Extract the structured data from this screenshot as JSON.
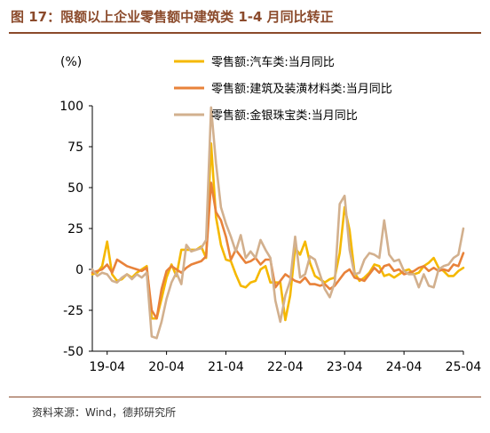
{
  "figure": {
    "title": "图 17：限额以上企业零售额中建筑类 1-4 月同比转正",
    "source": "资料来源：Wind，德邦研究所"
  },
  "chart_data": {
    "type": "line",
    "ylabel": "(%)",
    "xlabel": "",
    "ylim": [
      -50,
      100
    ],
    "yticks": [
      -50,
      -25,
      0,
      25,
      50,
      75,
      100
    ],
    "xticks": [
      "19-04",
      "20-04",
      "21-04",
      "22-04",
      "23-04",
      "24-04",
      "25-04"
    ],
    "grid": false,
    "legend_position": "top-right",
    "x": [
      "19-01",
      "19-02",
      "19-03",
      "19-04",
      "19-05",
      "19-06",
      "19-07",
      "19-08",
      "19-09",
      "19-10",
      "19-11",
      "19-12",
      "20-01",
      "20-02",
      "20-03",
      "20-04",
      "20-05",
      "20-06",
      "20-07",
      "20-08",
      "20-09",
      "20-10",
      "20-11",
      "20-12",
      "21-01",
      "21-02",
      "21-03",
      "21-04",
      "21-05",
      "21-06",
      "21-07",
      "21-08",
      "21-09",
      "21-10",
      "21-11",
      "21-12",
      "22-01",
      "22-02",
      "22-03",
      "22-04",
      "22-05",
      "22-06",
      "22-07",
      "22-08",
      "22-09",
      "22-10",
      "22-11",
      "22-12",
      "23-01",
      "23-02",
      "23-03",
      "23-04",
      "23-05",
      "23-06",
      "23-07",
      "23-08",
      "23-09",
      "23-10",
      "23-11",
      "23-12",
      "24-01",
      "24-02",
      "24-03",
      "24-04",
      "24-05",
      "24-06",
      "24-07",
      "24-08",
      "24-09",
      "24-10",
      "24-11",
      "24-12",
      "25-01",
      "25-02",
      "25-03",
      "25-04"
    ],
    "series": [
      {
        "name": "零售额:汽车类:当月同比",
        "color": "#F5B800",
        "values": [
          -3,
          -2,
          2,
          17,
          -3,
          -7,
          -6,
          -3,
          -5,
          -2,
          0,
          2,
          -30,
          -30,
          -18,
          -5,
          3,
          -4,
          12,
          12,
          12,
          12,
          14,
          7,
          77,
          32,
          15,
          6,
          5,
          -3,
          -10,
          -11,
          -8,
          -7,
          0,
          2,
          -8,
          -8,
          -8,
          -31,
          -16,
          13,
          9,
          17,
          4,
          -4,
          -6,
          -8,
          -6,
          -5,
          10,
          38,
          24,
          -2,
          -7,
          -5,
          -2,
          3,
          2,
          -4,
          -3,
          -5,
          -3,
          -1,
          0,
          -3,
          -2,
          2,
          4,
          7,
          1,
          -1,
          -4,
          -4,
          -1,
          1
        ]
      },
      {
        "name": "零售额:建筑及装潢材料类:当月同比",
        "color": "#E8823A",
        "values": [
          -2,
          -1,
          0,
          3,
          -2,
          6,
          4,
          2,
          1,
          0,
          -1,
          1,
          -25,
          -30,
          -12,
          -1,
          2,
          0,
          -2,
          1,
          3,
          4,
          5,
          8,
          53,
          35,
          30,
          20,
          6,
          12,
          8,
          4,
          5,
          7,
          3,
          6,
          6,
          -11,
          -7,
          -3,
          -5,
          -7,
          -8,
          -5,
          -9,
          -9,
          -10,
          -9,
          -12,
          -10,
          -6,
          -2,
          0,
          -5,
          -6,
          -7,
          -3,
          1,
          -2,
          2,
          3,
          -1,
          0,
          -3,
          -2,
          -1,
          1,
          2,
          -1,
          1,
          -1,
          0,
          -1,
          3,
          2,
          10
        ]
      },
      {
        "name": "零售额:金银珠宝类:当月同比",
        "color": "#D2B08E",
        "values": [
          0,
          -4,
          -2,
          -3,
          -7,
          -8,
          -5,
          -3,
          -6,
          -3,
          -5,
          -2,
          -41,
          -42,
          -32,
          -18,
          -8,
          -2,
          -9,
          15,
          11,
          12,
          13,
          18,
          99,
          65,
          38,
          28,
          20,
          11,
          21,
          7,
          11,
          7,
          18,
          12,
          7,
          -19,
          -32,
          -16,
          -7,
          20,
          -5,
          -3,
          8,
          6,
          -3,
          -12,
          -17,
          -8,
          40,
          45,
          12,
          -3,
          -2,
          6,
          10,
          9,
          7,
          30,
          9,
          5,
          6,
          -1,
          -3,
          -3,
          -11,
          -3,
          -10,
          -11,
          0,
          2,
          3,
          7,
          9,
          25
        ]
      }
    ]
  }
}
